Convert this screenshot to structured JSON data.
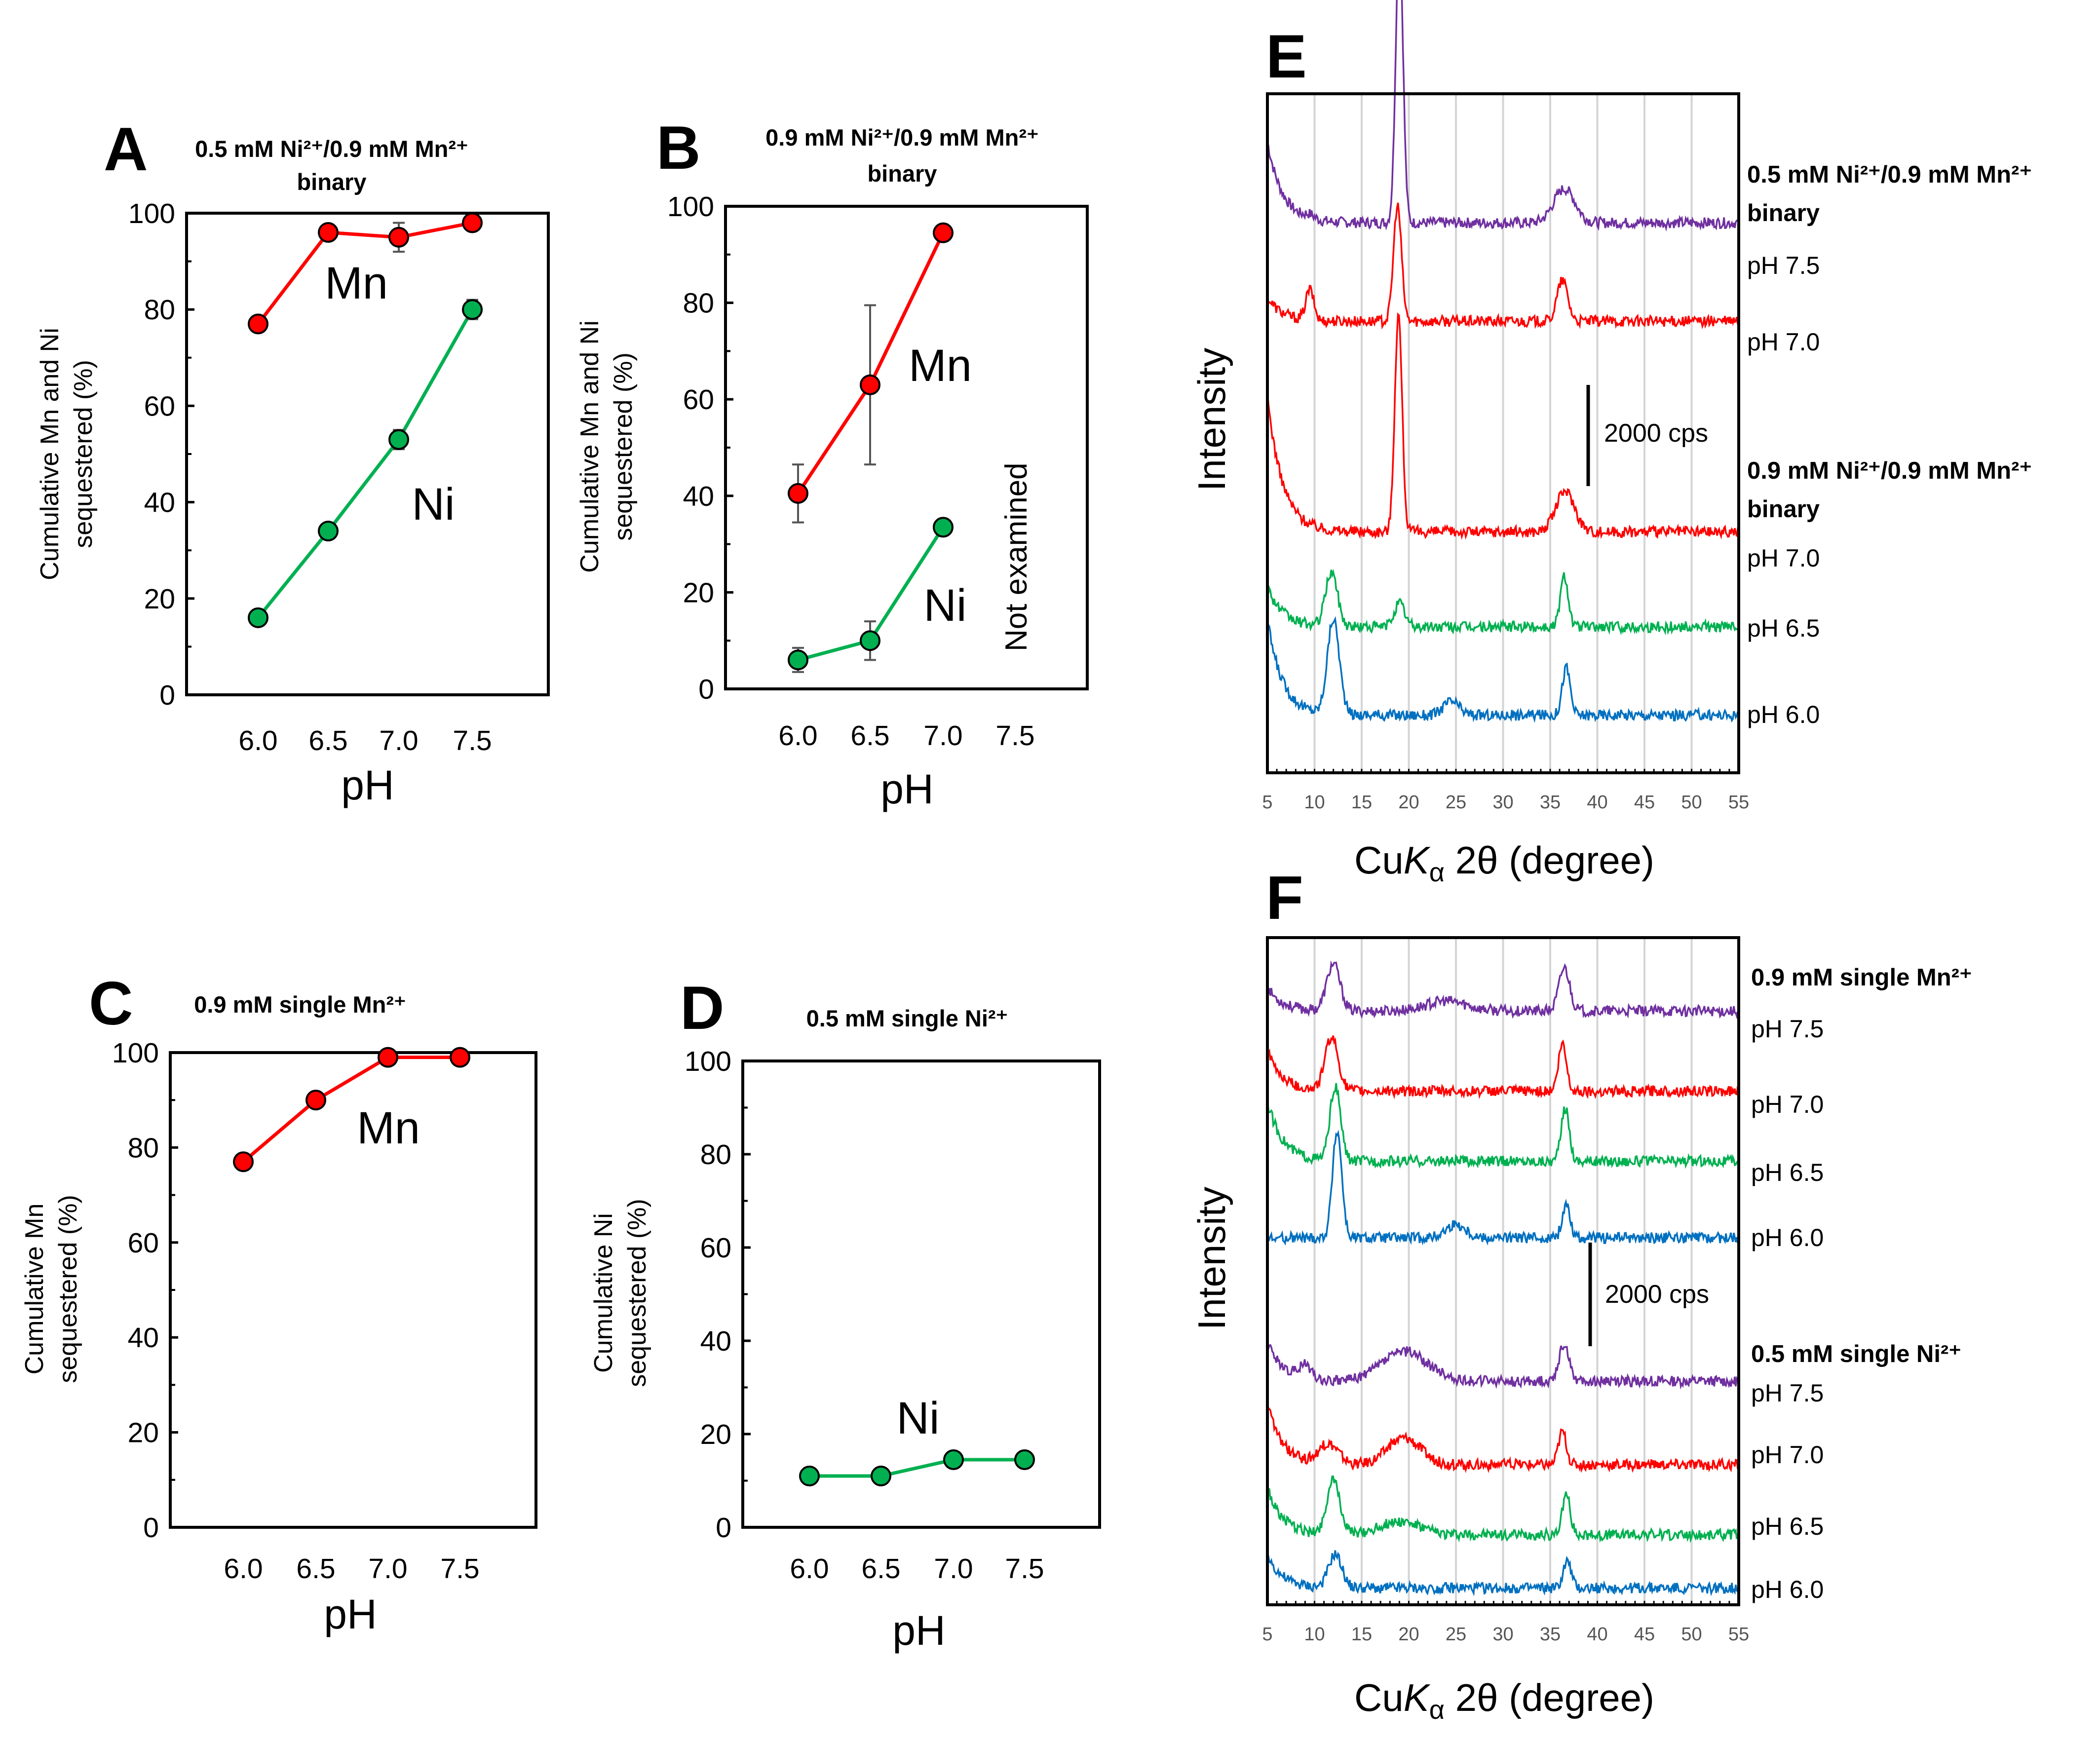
{
  "figure": {
    "panels": {
      "A": {
        "letter": "A",
        "title_line1": "0.5 mM Ni²⁺/0.9 mM Mn²⁺",
        "title_line2": "binary",
        "ylabel_line1": "Cumulative Mn and Ni",
        "ylabel_line2": "sequestered (%)",
        "xlabel": "pH",
        "series_labels": {
          "Mn": "Mn",
          "Ni": "Ni"
        }
      },
      "B": {
        "letter": "B",
        "title_line1": "0.9 mM Ni²⁺/0.9 mM Mn²⁺",
        "title_line2": "binary",
        "ylabel_line1": "Cumulative Mn and Ni",
        "ylabel_line2": "sequestered (%)",
        "xlabel": "pH",
        "series_labels": {
          "Mn": "Mn",
          "Ni": "Ni"
        },
        "annotation": "Not examined"
      },
      "C": {
        "letter": "C",
        "title_line1": "0.9 mM single Mn²⁺",
        "ylabel_line1": "Cumulative Mn",
        "ylabel_line2": "sequestered (%)",
        "xlabel": "pH",
        "series_labels": {
          "Mn": "Mn"
        }
      },
      "D": {
        "letter": "D",
        "title_line1": "0.5 mM single Ni²⁺",
        "ylabel_line1": "Cumulative Ni",
        "ylabel_line2": "sequestered (%)",
        "xlabel": "pH",
        "series_labels": {
          "Ni": "Ni"
        }
      },
      "E": {
        "letter": "E",
        "ylabel": "Intensity",
        "xlabel_pre": "Cu",
        "xlabel_k": "K",
        "xlabel_sub": "α",
        "xlabel_post": " 2θ (degree)",
        "scale_label": "2000 cps",
        "group1": {
          "line1": "0.5 mM Ni²⁺/0.9 mM Mn²⁺",
          "line2": "binary"
        },
        "group2": {
          "line1": "0.9 mM Ni²⁺/0.9 mM Mn²⁺",
          "line2": "binary"
        }
      },
      "F": {
        "letter": "F",
        "ylabel": "Intensity",
        "xlabel_pre": "Cu",
        "xlabel_k": "K",
        "xlabel_sub": "α",
        "xlabel_post": " 2θ (degree)",
        "scale_label": "2000 cps",
        "group1": {
          "line1": "0.9 mM single Mn²⁺"
        },
        "group2": {
          "line1": "0.5 mM single Ni²⁺"
        }
      }
    },
    "colors": {
      "mn": "#ff0000",
      "ni": "#00b050",
      "ph75": "#7030a0",
      "ph70": "#ff0000",
      "ph65": "#00b050",
      "ph60": "#0070c0"
    }
  },
  "chart_data": [
    {
      "id": "A",
      "type": "line",
      "xlabel": "pH",
      "ylabel": "Cumulative Mn and Ni sequestered (%)",
      "categories": [
        "6.0",
        "6.5",
        "7.0",
        "7.5"
      ],
      "ylim": [
        0,
        100
      ],
      "yticks": [
        0,
        20,
        40,
        60,
        80,
        100
      ],
      "series": [
        {
          "name": "Mn",
          "values": [
            77,
            96,
            95,
            98
          ],
          "err": [
            0,
            0,
            3,
            0
          ]
        },
        {
          "name": "Ni",
          "values": [
            16,
            34,
            53,
            80
          ],
          "err": [
            0,
            0,
            2,
            2
          ]
        }
      ]
    },
    {
      "id": "B",
      "type": "line",
      "xlabel": "pH",
      "ylabel": "Cumulative Mn and Ni sequestered (%)",
      "categories": [
        "6.0",
        "6.5",
        "7.0",
        "7.5"
      ],
      "ylim": [
        0,
        100
      ],
      "yticks": [
        0,
        20,
        40,
        60,
        80,
        100
      ],
      "series": [
        {
          "name": "Mn",
          "values": [
            40.5,
            63,
            94.5,
            null
          ],
          "err": [
            6,
            16.5,
            0,
            0
          ]
        },
        {
          "name": "Ni",
          "values": [
            6,
            10,
            33.5,
            null
          ],
          "err": [
            2.5,
            4,
            0,
            0
          ]
        }
      ]
    },
    {
      "id": "C",
      "type": "line",
      "xlabel": "pH",
      "ylabel": "Cumulative Mn sequestered (%)",
      "categories": [
        "6.0",
        "6.5",
        "7.0",
        "7.5"
      ],
      "ylim": [
        0,
        100
      ],
      "yticks": [
        0,
        20,
        40,
        60,
        80,
        100
      ],
      "series": [
        {
          "name": "Mn",
          "values": [
            77,
            90,
            99,
            99
          ],
          "err": [
            1.5,
            0,
            0,
            0
          ]
        }
      ]
    },
    {
      "id": "D",
      "type": "line",
      "xlabel": "pH",
      "ylabel": "Cumulative Ni sequestered (%)",
      "categories": [
        "6.0",
        "6.5",
        "7.0",
        "7.5"
      ],
      "ylim": [
        0,
        100
      ],
      "yticks": [
        0,
        20,
        40,
        60,
        80,
        100
      ],
      "series": [
        {
          "name": "Ni",
          "values": [
            11,
            11,
            14.5,
            14.5
          ],
          "err": [
            0,
            0,
            0,
            0
          ]
        }
      ]
    },
    {
      "id": "E",
      "type": "line",
      "subtype": "xrd",
      "xlabel": "CuKα 2θ (degree)",
      "ylabel": "Intensity",
      "xlim": [
        5,
        55
      ],
      "xticks": [
        5,
        10,
        15,
        20,
        25,
        30,
        35,
        40,
        45,
        50,
        55
      ],
      "series": [
        {
          "name": "pH 7.5",
          "group": "0.5 mM Ni²⁺/0.9 mM Mn²⁺ binary",
          "color_key": "ph75",
          "baseline": 0.81,
          "peaks": [
            [
              9.5,
              0.006,
              0.7
            ],
            [
              19,
              0.42,
              0.55
            ],
            [
              36.5,
              0.05,
              1.6
            ]
          ],
          "start": 0.12
        },
        {
          "name": "pH 7.0",
          "group": "0.5 mM Ni²⁺/0.9 mM Mn²⁺ binary",
          "color_key": "ph70",
          "baseline": 0.665,
          "peaks": [
            [
              9.5,
              0.045,
              0.6
            ],
            [
              18.8,
              0.17,
              0.6
            ],
            [
              36.3,
              0.06,
              0.8
            ]
          ],
          "start": 0.035
        },
        {
          "name": "pH 7.0",
          "group": "0.9 mM Ni²⁺/0.9 mM Mn²⁺ binary",
          "color_key": "ph70",
          "baseline": 0.355,
          "peaks": [
            [
              18.9,
              0.32,
              0.55
            ],
            [
              36.6,
              0.06,
              1.4
            ]
          ],
          "start": 0.2
        },
        {
          "name": "pH 6.5",
          "group": "0.9 mM Ni²⁺/0.9 mM Mn²⁺ binary",
          "color_key": "ph65",
          "baseline": 0.215,
          "peaks": [
            [
              11.8,
              0.08,
              0.9
            ],
            [
              19,
              0.035,
              0.8
            ],
            [
              36.5,
              0.075,
              0.6
            ]
          ],
          "start": 0.06
        },
        {
          "name": "pH 6.0",
          "group": "0.9 mM Ni²⁺/0.9 mM Mn²⁺ binary",
          "color_key": "ph60",
          "baseline": 0.085,
          "peaks": [
            [
              12,
              0.14,
              0.9
            ],
            [
              24.5,
              0.02,
              1.2
            ],
            [
              36.7,
              0.07,
              0.6
            ]
          ],
          "start": 0.14
        }
      ]
    },
    {
      "id": "F",
      "type": "line",
      "subtype": "xrd",
      "xlabel": "CuKα 2θ (degree)",
      "ylabel": "Intensity",
      "xlim": [
        5,
        55
      ],
      "xticks": [
        5,
        10,
        15,
        20,
        25,
        30,
        35,
        40,
        45,
        50,
        55
      ],
      "series": [
        {
          "name": "pH 7.5",
          "group": "0.9 mM single Mn²⁺",
          "color_key": "ph75",
          "baseline": 0.89,
          "peaks": [
            [
              12,
              0.07,
              1
            ],
            [
              24,
              0.015,
              3
            ],
            [
              36.5,
              0.065,
              0.8
            ]
          ],
          "start": 0.035
        },
        {
          "name": "pH 7.0",
          "group": "0.9 mM single Mn²⁺",
          "color_key": "ph70",
          "baseline": 0.77,
          "peaks": [
            [
              11.8,
              0.08,
              1
            ],
            [
              36.3,
              0.07,
              0.6
            ]
          ],
          "start": 0.06
        },
        {
          "name": "pH 6.5",
          "group": "0.9 mM single Mn²⁺",
          "color_key": "ph65",
          "baseline": 0.665,
          "peaks": [
            [
              12.2,
              0.11,
              0.8
            ],
            [
              36.6,
              0.08,
              0.6
            ]
          ],
          "start": 0.09
        },
        {
          "name": "pH 6.0",
          "group": "0.9 mM single Mn²⁺",
          "color_key": "ph60",
          "baseline": 0.55,
          "peaks": [
            [
              12.4,
              0.16,
              0.7
            ],
            [
              25,
              0.02,
              1.5
            ],
            [
              36.7,
              0.05,
              0.6
            ]
          ],
          "start": 0.0
        },
        {
          "name": "pH 7.5",
          "group": "0.5 mM single Ni²⁺",
          "color_key": "ph75",
          "baseline": 0.335,
          "peaks": [
            [
              9,
              0.02,
              1
            ],
            [
              19.5,
              0.045,
              3.5
            ],
            [
              36.5,
              0.055,
              0.8
            ]
          ],
          "start": 0.06
        },
        {
          "name": "pH 7.0",
          "group": "0.5 mM single Ni²⁺",
          "color_key": "ph70",
          "baseline": 0.21,
          "peaks": [
            [
              11.5,
              0.03,
              1.5
            ],
            [
              19.5,
              0.04,
              2.5
            ],
            [
              36.3,
              0.05,
              0.6
            ]
          ],
          "start": 0.09
        },
        {
          "name": "pH 6.5",
          "group": "0.5 mM single Ni²⁺",
          "color_key": "ph65",
          "baseline": 0.105,
          "peaks": [
            [
              12,
              0.08,
              1
            ],
            [
              19,
              0.02,
              3
            ],
            [
              36.7,
              0.06,
              0.6
            ]
          ],
          "start": 0.07
        },
        {
          "name": "pH 6.0",
          "group": "0.5 mM single Ni²⁺",
          "color_key": "ph60",
          "baseline": 0.025,
          "peaks": [
            [
              12.2,
              0.05,
              1
            ],
            [
              36.8,
              0.04,
              0.6
            ]
          ],
          "start": 0.05
        }
      ]
    }
  ]
}
